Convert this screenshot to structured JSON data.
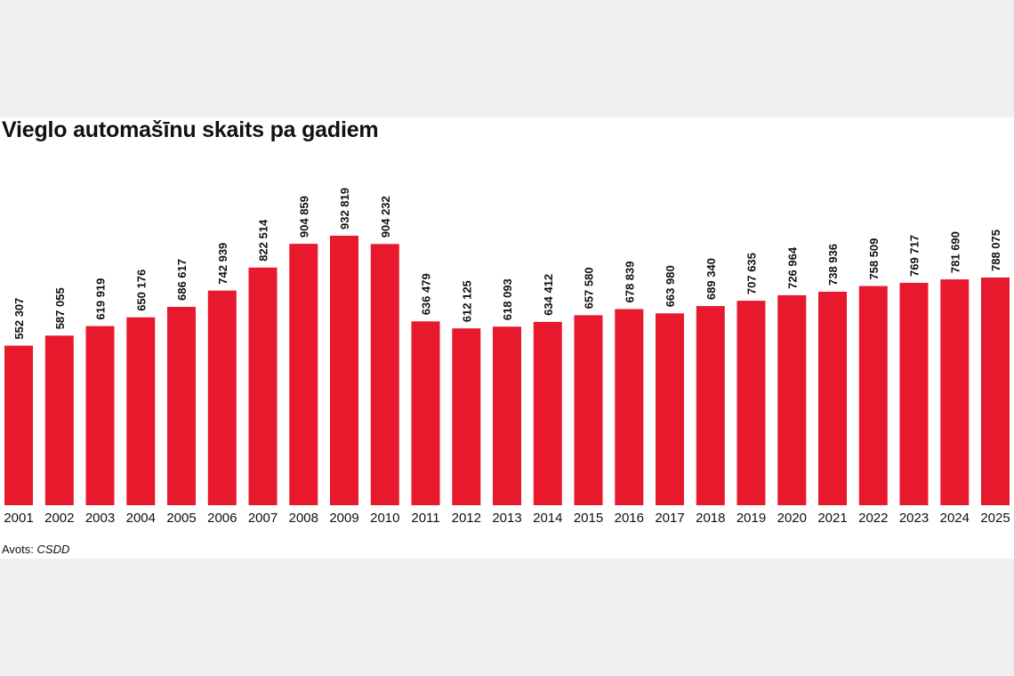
{
  "chart_data": {
    "type": "bar",
    "title": "Vieglo automašīnu skaits pa gadiem",
    "categories": [
      "2001",
      "2002",
      "2003",
      "2004",
      "2005",
      "2006",
      "2007",
      "2008",
      "2009",
      "2010",
      "2011",
      "2012",
      "2013",
      "2014",
      "2015",
      "2016",
      "2017",
      "2018",
      "2019",
      "2020",
      "2021",
      "2022",
      "2023",
      "2024",
      "2025"
    ],
    "values": [
      552307,
      587055,
      619919,
      650176,
      686617,
      742939,
      822514,
      904859,
      932819,
      904232,
      636479,
      612125,
      618093,
      634412,
      657580,
      678839,
      663980,
      689340,
      707635,
      726964,
      738936,
      758509,
      769717,
      781690,
      788075
    ],
    "value_labels": [
      "552 307",
      "587 055",
      "619 919",
      "650 176",
      "686 617",
      "742 939",
      "822 514",
      "904 859",
      "932 819",
      "904 232",
      "636 479",
      "612 125",
      "618 093",
      "634 412",
      "657 580",
      "678 839",
      "663 980",
      "689 340",
      "707 635",
      "726 964",
      "738 936",
      "758 509",
      "769 717",
      "781 690",
      "788 075"
    ],
    "ylim": [
      0,
      932819
    ],
    "grid": false,
    "bar_color": "#e8192c"
  },
  "source": {
    "prefix": "Avots:",
    "name": "CSDD"
  }
}
